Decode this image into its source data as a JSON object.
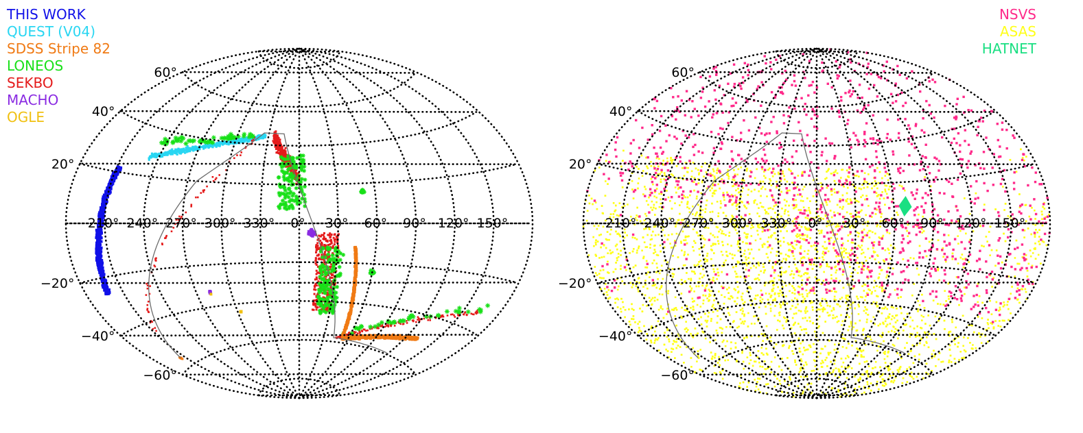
{
  "chart_data": [
    {
      "type": "scatter",
      "projection": "aitoff-equatorial",
      "graticule": {
        "lon_step_deg": 30,
        "lat_step_deg": 20,
        "x_tick_labels": [
          "210°",
          "240°",
          "270°",
          "300°",
          "330°",
          "0°",
          "30°",
          "60°",
          "90°",
          "120°",
          "150°"
        ],
        "y_tick_labels": [
          "60°",
          "40°",
          "20°",
          "−20°",
          "−40°",
          "−60°"
        ],
        "grid": true
      },
      "legend_position": "top-left",
      "series": [
        {
          "name": "THIS WORK",
          "color": "#1010e8",
          "x": [
            225,
            222,
            218,
            215,
            212,
            210,
            208,
            206
          ],
          "y": [
            22,
            16,
            10,
            4,
            -2,
            -8,
            -14,
            -22
          ]
        },
        {
          "name": "QUEST (V04)",
          "color": "#29d6f2",
          "x": [
            325,
            315,
            300,
            285,
            270,
            255,
            240,
            232
          ],
          "y": [
            48,
            48,
            47,
            45,
            42,
            38,
            33,
            28
          ]
        },
        {
          "name": "SDSS Stripe 82",
          "color": "#f07a14",
          "x": [
            45,
            46,
            47,
            48,
            52,
            60,
            75,
            95,
            110,
            120,
            205
          ],
          "y": [
            -5,
            -10,
            -20,
            -30,
            -40,
            -50,
            -58,
            -60,
            -58,
            -55,
            -55
          ]
        },
        {
          "name": "LONEOS",
          "color": "#18e018",
          "x": [
            340,
            345,
            350,
            355,
            0,
            5,
            10,
            15,
            20,
            25,
            30,
            38,
            55,
            60,
            65,
            70,
            95,
            130,
            150,
            270,
            280,
            290,
            300,
            310,
            320,
            330,
            240,
            230
          ],
          "y": [
            42,
            38,
            30,
            25,
            22,
            18,
            15,
            12,
            -15,
            -18,
            -22,
            -25,
            -20,
            -25,
            -35,
            -45,
            -55,
            -60,
            -50,
            40,
            40,
            41,
            42,
            43,
            44,
            45,
            30,
            25
          ]
        },
        {
          "name": "SEKBO",
          "color": "#e41b1b",
          "x": [
            330,
            335,
            340,
            345,
            350,
            355,
            5,
            10,
            15,
            20,
            25,
            30,
            35,
            40,
            60,
            80,
            100,
            120,
            140,
            160,
            215,
            220,
            225,
            230,
            240,
            260,
            280,
            300
          ],
          "y": [
            42,
            35,
            28,
            25,
            22,
            18,
            -5,
            -10,
            -15,
            -20,
            -25,
            -30,
            -35,
            -40,
            -55,
            -58,
            -60,
            -55,
            -45,
            -40,
            0,
            -5,
            -10,
            18,
            26,
            36,
            41,
            44
          ]
        },
        {
          "name": "MACHO",
          "color": "#8a2be2",
          "x": [
            8,
            10,
            12,
            14,
            281,
            282
          ],
          "y": [
            -6,
            -7,
            -5,
            -6,
            -33,
            -34
          ]
        },
        {
          "name": "OGLE",
          "color": "#f0c010",
          "x": [
            281,
            283,
            303
          ],
          "y": [
            -34,
            -34,
            -44
          ]
        }
      ]
    },
    {
      "type": "scatter",
      "projection": "aitoff-equatorial",
      "graticule": {
        "lon_step_deg": 30,
        "lat_step_deg": 20,
        "x_tick_labels": [
          "210°",
          "240°",
          "270°",
          "300°",
          "330°",
          "0°",
          "30°",
          "60°",
          "90°",
          "120°",
          "150°"
        ],
        "y_tick_labels": [
          "60°",
          "40°",
          "20°",
          "−20°",
          "−40°",
          "−60°"
        ],
        "grid": true
      },
      "legend_position": "top-right",
      "series": [
        {
          "name": "NSVS",
          "color": "#ff2a8a",
          "note_dec_range": [
            -38,
            90
          ]
        },
        {
          "name": "ASAS",
          "color": "#ffff1a",
          "note_dec_range": [
            -90,
            28
          ]
        },
        {
          "name": "HATNET",
          "color": "#1adf82",
          "x": [
            66,
            68,
            72,
            70
          ],
          "y": [
            6,
            12,
            10,
            3
          ]
        }
      ]
    }
  ],
  "colors": {
    "grid": "#000000",
    "ecliptic_line": "#6b6b6b"
  }
}
